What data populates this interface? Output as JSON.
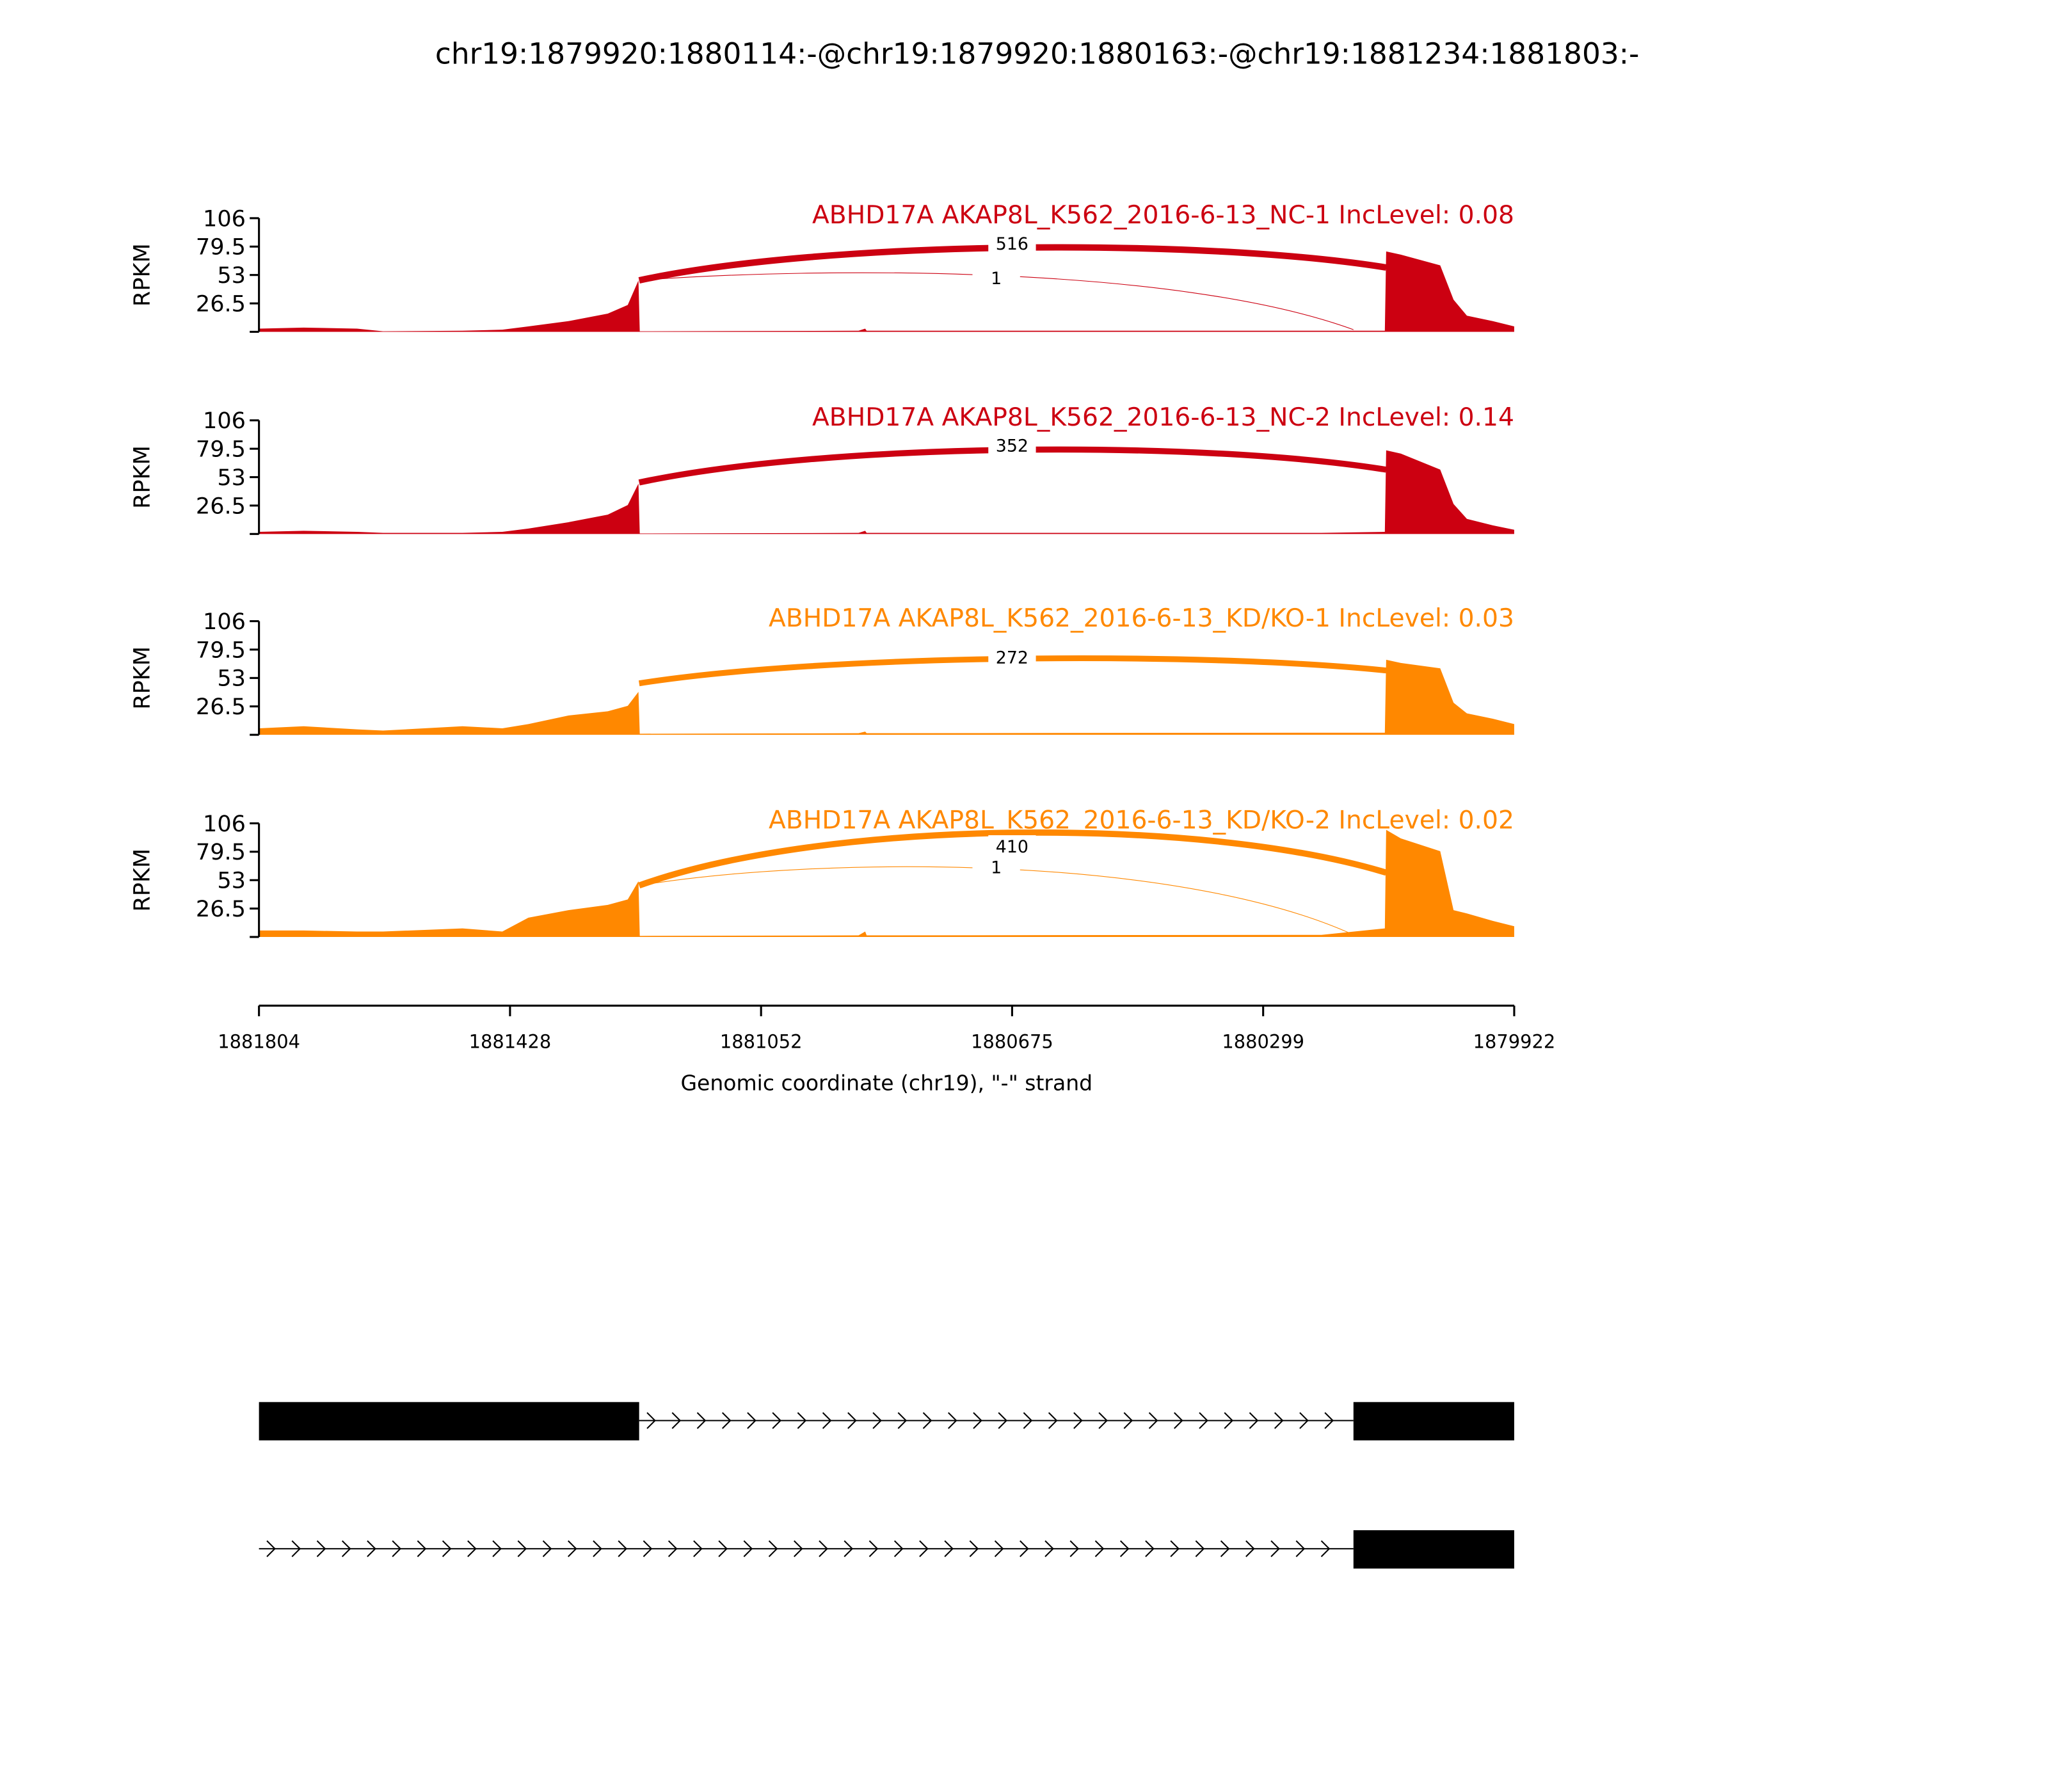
{
  "chart_data": {
    "type": "area",
    "title": "chr19:1879920:1880114:-@chr19:1879920:1880163:-@chr19:1881234:1881803:-",
    "xlabel": "Genomic coordinate (chr19), \"-\" strand",
    "ylabel": "RPKM",
    "xlim": [
      1881804,
      1879922
    ],
    "xticks": [
      "1881804",
      "1881428",
      "1881052",
      "1880675",
      "1880299",
      "1879922"
    ],
    "ylim": [
      0,
      106
    ],
    "yticks": [
      "106",
      "79.5",
      "53",
      "26.5"
    ],
    "coverage_x": [
      1881804,
      1881737,
      1881657,
      1881618,
      1881499,
      1881439,
      1881400,
      1881340,
      1881281,
      1881251,
      1881235,
      1881233,
      1880905,
      1880895,
      1880893,
      1880211,
      1880116,
      1880114,
      1880092,
      1880033,
      1880013,
      1879993,
      1879954,
      1879922
    ],
    "series": [
      {
        "name": "ABHD17A AKAP8L_K562_2016-6-13_NC-1 IncLevel: 0.08",
        "color": "#cc0011",
        "coverage": [
          3,
          4,
          3,
          0.5,
          1,
          2,
          5,
          10,
          17,
          25,
          48,
          0.5,
          1,
          3,
          1,
          1,
          1,
          75,
          72,
          62,
          30,
          15,
          10,
          5
        ],
        "junctions": [
          {
            "from": 1881234,
            "to": 1880114,
            "count": "516",
            "peak": 78
          },
          {
            "from": 1881234,
            "to": 1880163,
            "count": "1",
            "peak": 53
          }
        ]
      },
      {
        "name": "ABHD17A AKAP8L_K562_2016-6-13_NC-2 IncLevel: 0.14",
        "color": "#cc0011",
        "coverage": [
          2,
          3,
          2,
          1,
          1,
          2,
          5,
          11,
          18,
          27,
          47,
          0.5,
          1,
          3,
          1,
          1,
          2,
          78,
          75,
          60,
          28,
          14,
          8,
          4
        ],
        "junctions": [
          {
            "from": 1881234,
            "to": 1880114,
            "count": "352",
            "peak": 78
          }
        ]
      },
      {
        "name": "ABHD17A AKAP8L_K562_2016-6-13_KD/KO-1 IncLevel: 0.03",
        "color": "#ff8800",
        "coverage": [
          6,
          8,
          5,
          4,
          8,
          6,
          10,
          18,
          22,
          27,
          40,
          1,
          1.5,
          3,
          1.5,
          2,
          2,
          70,
          67,
          62,
          30,
          20,
          15,
          10
        ],
        "junctions": [
          {
            "from": 1881234,
            "to": 1880114,
            "count": "272",
            "peak": 68
          }
        ]
      },
      {
        "name": "ABHD17A AKAP8L_K562_2016-6-13_KD/KO-2 IncLevel: 0.02",
        "color": "#ff8800",
        "coverage": [
          6,
          6,
          5,
          5,
          8,
          5,
          18,
          25,
          30,
          35,
          52,
          1,
          1.5,
          5,
          1.5,
          2,
          8,
          100,
          92,
          80,
          25,
          22,
          15,
          10
        ],
        "junctions": [
          {
            "from": 1881234,
            "to": 1880114,
            "count": "410",
            "peak": 103
          },
          {
            "from": 1881234,
            "to": 1880163,
            "count": "1",
            "peak": 68
          }
        ]
      }
    ],
    "gene_models": [
      {
        "exons": [
          [
            1881804,
            1881234
          ],
          [
            1880163,
            1879922
          ]
        ]
      },
      {
        "exons": [
          [
            1880163,
            1879922
          ]
        ],
        "intron_start": 1881804
      }
    ]
  }
}
